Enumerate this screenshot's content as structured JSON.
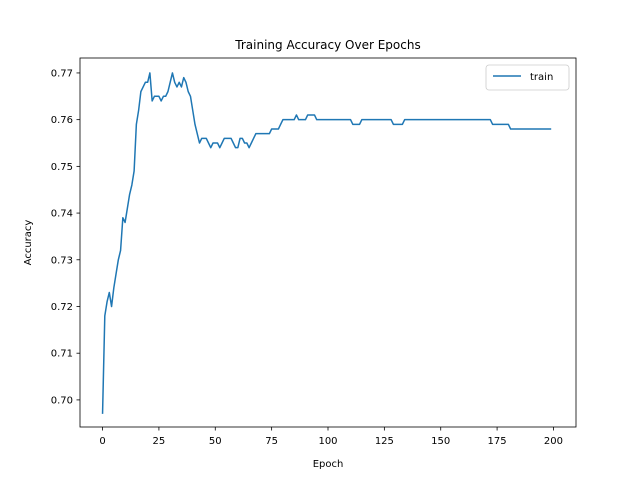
{
  "chart_data": {
    "type": "line",
    "title": "Training Accuracy Over Epochs",
    "xlabel": "Epoch",
    "ylabel": "Accuracy",
    "xlim": [
      -10,
      210
    ],
    "ylim": [
      0.6942,
      0.7732
    ],
    "xticks": [
      0,
      25,
      50,
      75,
      100,
      125,
      150,
      175,
      200
    ],
    "yticks": [
      0.7,
      0.71,
      0.72,
      0.73,
      0.74,
      0.75,
      0.76,
      0.77
    ],
    "grid": false,
    "legend_position": "top-right",
    "series": [
      {
        "name": "train",
        "color": "#1f77b4",
        "x": [
          0,
          1,
          2,
          3,
          4,
          5,
          6,
          7,
          8,
          9,
          10,
          11,
          12,
          13,
          14,
          15,
          16,
          17,
          18,
          19,
          20,
          21,
          22,
          23,
          24,
          25,
          26,
          27,
          28,
          29,
          30,
          31,
          32,
          33,
          34,
          35,
          36,
          37,
          38,
          39,
          40,
          41,
          42,
          43,
          44,
          45,
          46,
          47,
          48,
          49,
          50,
          51,
          52,
          53,
          54,
          55,
          56,
          57,
          58,
          59,
          60,
          61,
          62,
          63,
          64,
          65,
          66,
          67,
          68,
          69,
          70,
          71,
          72,
          73,
          74,
          75,
          76,
          77,
          78,
          79,
          80,
          81,
          82,
          83,
          84,
          85,
          86,
          87,
          88,
          89,
          90,
          91,
          92,
          93,
          94,
          95,
          96,
          97,
          98,
          99,
          100,
          101,
          102,
          103,
          104,
          105,
          106,
          107,
          108,
          109,
          110,
          111,
          112,
          113,
          114,
          115,
          116,
          117,
          118,
          119,
          120,
          121,
          122,
          123,
          124,
          125,
          126,
          127,
          128,
          129,
          130,
          131,
          132,
          133,
          134,
          135,
          136,
          137,
          138,
          139,
          140,
          141,
          142,
          143,
          144,
          145,
          146,
          147,
          148,
          149,
          150,
          151,
          152,
          153,
          154,
          155,
          156,
          157,
          158,
          159,
          160,
          161,
          162,
          163,
          164,
          165,
          166,
          167,
          168,
          169,
          170,
          171,
          172,
          173,
          174,
          175,
          176,
          177,
          178,
          179,
          180,
          181,
          182,
          183,
          184,
          185,
          186,
          187,
          188,
          189,
          190,
          191,
          192,
          193,
          194,
          195,
          196,
          197,
          198,
          199
        ],
        "y": [
          0.697,
          0.718,
          0.721,
          0.723,
          0.72,
          0.724,
          0.727,
          0.73,
          0.732,
          0.739,
          0.738,
          0.741,
          0.744,
          0.746,
          0.749,
          0.759,
          0.762,
          0.766,
          0.767,
          0.768,
          0.768,
          0.77,
          0.764,
          0.765,
          0.765,
          0.765,
          0.764,
          0.765,
          0.765,
          0.766,
          0.768,
          0.77,
          0.768,
          0.767,
          0.768,
          0.767,
          0.769,
          0.768,
          0.766,
          0.765,
          0.762,
          0.759,
          0.757,
          0.755,
          0.756,
          0.756,
          0.756,
          0.755,
          0.754,
          0.755,
          0.755,
          0.755,
          0.754,
          0.755,
          0.756,
          0.756,
          0.756,
          0.756,
          0.755,
          0.754,
          0.754,
          0.756,
          0.756,
          0.755,
          0.755,
          0.754,
          0.755,
          0.756,
          0.757,
          0.757,
          0.757,
          0.757,
          0.757,
          0.757,
          0.757,
          0.758,
          0.758,
          0.758,
          0.758,
          0.759,
          0.76,
          0.76,
          0.76,
          0.76,
          0.76,
          0.76,
          0.761,
          0.76,
          0.76,
          0.76,
          0.76,
          0.761,
          0.761,
          0.761,
          0.761,
          0.76,
          0.76,
          0.76,
          0.76,
          0.76,
          0.76,
          0.76,
          0.76,
          0.76,
          0.76,
          0.76,
          0.76,
          0.76,
          0.76,
          0.76,
          0.76,
          0.759,
          0.759,
          0.759,
          0.759,
          0.76,
          0.76,
          0.76,
          0.76,
          0.76,
          0.76,
          0.76,
          0.76,
          0.76,
          0.76,
          0.76,
          0.76,
          0.76,
          0.76,
          0.759,
          0.759,
          0.759,
          0.759,
          0.759,
          0.76,
          0.76,
          0.76,
          0.76,
          0.76,
          0.76,
          0.76,
          0.76,
          0.76,
          0.76,
          0.76,
          0.76,
          0.76,
          0.76,
          0.76,
          0.76,
          0.76,
          0.76,
          0.76,
          0.76,
          0.76,
          0.76,
          0.76,
          0.76,
          0.76,
          0.76,
          0.76,
          0.76,
          0.76,
          0.76,
          0.76,
          0.76,
          0.76,
          0.76,
          0.76,
          0.76,
          0.76,
          0.76,
          0.76,
          0.759,
          0.759,
          0.759,
          0.759,
          0.759,
          0.759,
          0.759,
          0.759,
          0.758,
          0.758,
          0.758,
          0.758,
          0.758,
          0.758,
          0.758,
          0.758,
          0.758,
          0.758,
          0.758,
          0.758,
          0.758,
          0.758,
          0.758,
          0.758,
          0.758,
          0.758,
          0.758
        ]
      }
    ]
  }
}
